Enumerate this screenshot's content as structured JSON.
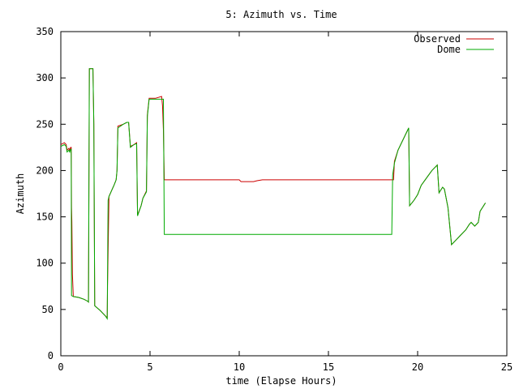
{
  "chart_data": {
    "type": "line",
    "title": "5: Azimuth vs. Time",
    "xlabel": "time (Elapse Hours)",
    "ylabel": "Azimuth",
    "xlim": [
      0,
      25
    ],
    "ylim": [
      0,
      350
    ],
    "xticks": [
      0,
      5,
      10,
      15,
      20,
      25
    ],
    "yticks": [
      0,
      50,
      100,
      150,
      200,
      250,
      300,
      350
    ],
    "grid": false,
    "legend_position": "top-right",
    "series": [
      {
        "name": "Observed",
        "color": "#cc0000",
        "points": [
          [
            0,
            228
          ],
          [
            0.2,
            230
          ],
          [
            0.3,
            228
          ],
          [
            0.35,
            222
          ],
          [
            0.45,
            224
          ],
          [
            0.5,
            222
          ],
          [
            0.55,
            225
          ],
          [
            0.58,
            225
          ],
          [
            0.6,
            160
          ],
          [
            0.62,
            145
          ],
          [
            0.65,
            88
          ],
          [
            0.7,
            64
          ],
          [
            1.0,
            63
          ],
          [
            1.3,
            61
          ],
          [
            1.5,
            59
          ],
          [
            1.55,
            58
          ],
          [
            1.6,
            310
          ],
          [
            1.8,
            310
          ],
          [
            1.85,
            250
          ],
          [
            1.9,
            54
          ],
          [
            2.2,
            49
          ],
          [
            2.5,
            43
          ],
          [
            2.6,
            41
          ],
          [
            2.62,
            75
          ],
          [
            2.7,
            172
          ],
          [
            3.0,
            185
          ],
          [
            3.1,
            190
          ],
          [
            3.15,
            200
          ],
          [
            3.2,
            248
          ],
          [
            3.5,
            250
          ],
          [
            3.7,
            252
          ],
          [
            3.8,
            252
          ],
          [
            3.9,
            226
          ],
          [
            4.1,
            228
          ],
          [
            4.25,
            230
          ],
          [
            4.3,
            152
          ],
          [
            4.5,
            162
          ],
          [
            4.6,
            170
          ],
          [
            4.8,
            178
          ],
          [
            4.85,
            260
          ],
          [
            4.95,
            278
          ],
          [
            5.3,
            278
          ],
          [
            5.65,
            280
          ],
          [
            5.7,
            270
          ],
          [
            5.75,
            244
          ],
          [
            5.8,
            190
          ],
          [
            7.0,
            190
          ],
          [
            10.0,
            190
          ],
          [
            10.1,
            188
          ],
          [
            10.8,
            188
          ],
          [
            11.0,
            189
          ],
          [
            11.3,
            190
          ],
          [
            15.0,
            190
          ],
          [
            18.65,
            190
          ],
          [
            18.7,
            210
          ],
          [
            18.9,
            222
          ],
          [
            19.1,
            230
          ],
          [
            19.3,
            238
          ],
          [
            19.5,
            246
          ],
          [
            19.55,
            162
          ],
          [
            19.8,
            168
          ],
          [
            20.0,
            174
          ],
          [
            20.2,
            184
          ],
          [
            20.5,
            192
          ],
          [
            20.8,
            200
          ],
          [
            21.1,
            206
          ],
          [
            21.2,
            176
          ],
          [
            21.4,
            182
          ],
          [
            21.5,
            180
          ],
          [
            21.7,
            160
          ],
          [
            21.9,
            120
          ],
          [
            22.1,
            124
          ],
          [
            22.4,
            130
          ],
          [
            22.7,
            136
          ],
          [
            22.9,
            142
          ],
          [
            23.0,
            144
          ],
          [
            23.2,
            140
          ],
          [
            23.4,
            144
          ],
          [
            23.5,
            156
          ],
          [
            23.8,
            165
          ]
        ]
      },
      {
        "name": "Dome",
        "color": "#00aa00",
        "points": [
          [
            0,
            226
          ],
          [
            0.2,
            228
          ],
          [
            0.3,
            226
          ],
          [
            0.35,
            220
          ],
          [
            0.45,
            222
          ],
          [
            0.5,
            220
          ],
          [
            0.55,
            223
          ],
          [
            0.58,
            223
          ],
          [
            0.6,
            65
          ],
          [
            0.7,
            64
          ],
          [
            1.0,
            63
          ],
          [
            1.3,
            61
          ],
          [
            1.5,
            59
          ],
          [
            1.55,
            58
          ],
          [
            1.6,
            310
          ],
          [
            1.8,
            310
          ],
          [
            1.85,
            250
          ],
          [
            1.9,
            54
          ],
          [
            2.2,
            49
          ],
          [
            2.5,
            43
          ],
          [
            2.6,
            40
          ],
          [
            2.65,
            168
          ],
          [
            2.7,
            172
          ],
          [
            3.0,
            185
          ],
          [
            3.1,
            190
          ],
          [
            3.15,
            200
          ],
          [
            3.2,
            246
          ],
          [
            3.5,
            250
          ],
          [
            3.7,
            252
          ],
          [
            3.8,
            252
          ],
          [
            3.9,
            225
          ],
          [
            4.1,
            228
          ],
          [
            4.25,
            229
          ],
          [
            4.3,
            151
          ],
          [
            4.5,
            162
          ],
          [
            4.6,
            170
          ],
          [
            4.8,
            177
          ],
          [
            4.85,
            258
          ],
          [
            4.95,
            277
          ],
          [
            5.3,
            277
          ],
          [
            5.65,
            277
          ],
          [
            5.75,
            277
          ],
          [
            5.8,
            131
          ],
          [
            10.0,
            131
          ],
          [
            15.0,
            131
          ],
          [
            18.55,
            131
          ],
          [
            18.6,
            195
          ],
          [
            18.7,
            208
          ],
          [
            18.9,
            222
          ],
          [
            19.1,
            230
          ],
          [
            19.3,
            238
          ],
          [
            19.5,
            246
          ],
          [
            19.55,
            162
          ],
          [
            19.8,
            168
          ],
          [
            20.0,
            174
          ],
          [
            20.2,
            184
          ],
          [
            20.5,
            192
          ],
          [
            20.8,
            200
          ],
          [
            21.1,
            206
          ],
          [
            21.2,
            176
          ],
          [
            21.4,
            182
          ],
          [
            21.5,
            180
          ],
          [
            21.7,
            160
          ],
          [
            21.9,
            120
          ],
          [
            22.1,
            124
          ],
          [
            22.4,
            130
          ],
          [
            22.7,
            136
          ],
          [
            22.9,
            142
          ],
          [
            23.0,
            144
          ],
          [
            23.2,
            140
          ],
          [
            23.4,
            144
          ],
          [
            23.5,
            156
          ],
          [
            23.8,
            165
          ]
        ]
      }
    ]
  }
}
